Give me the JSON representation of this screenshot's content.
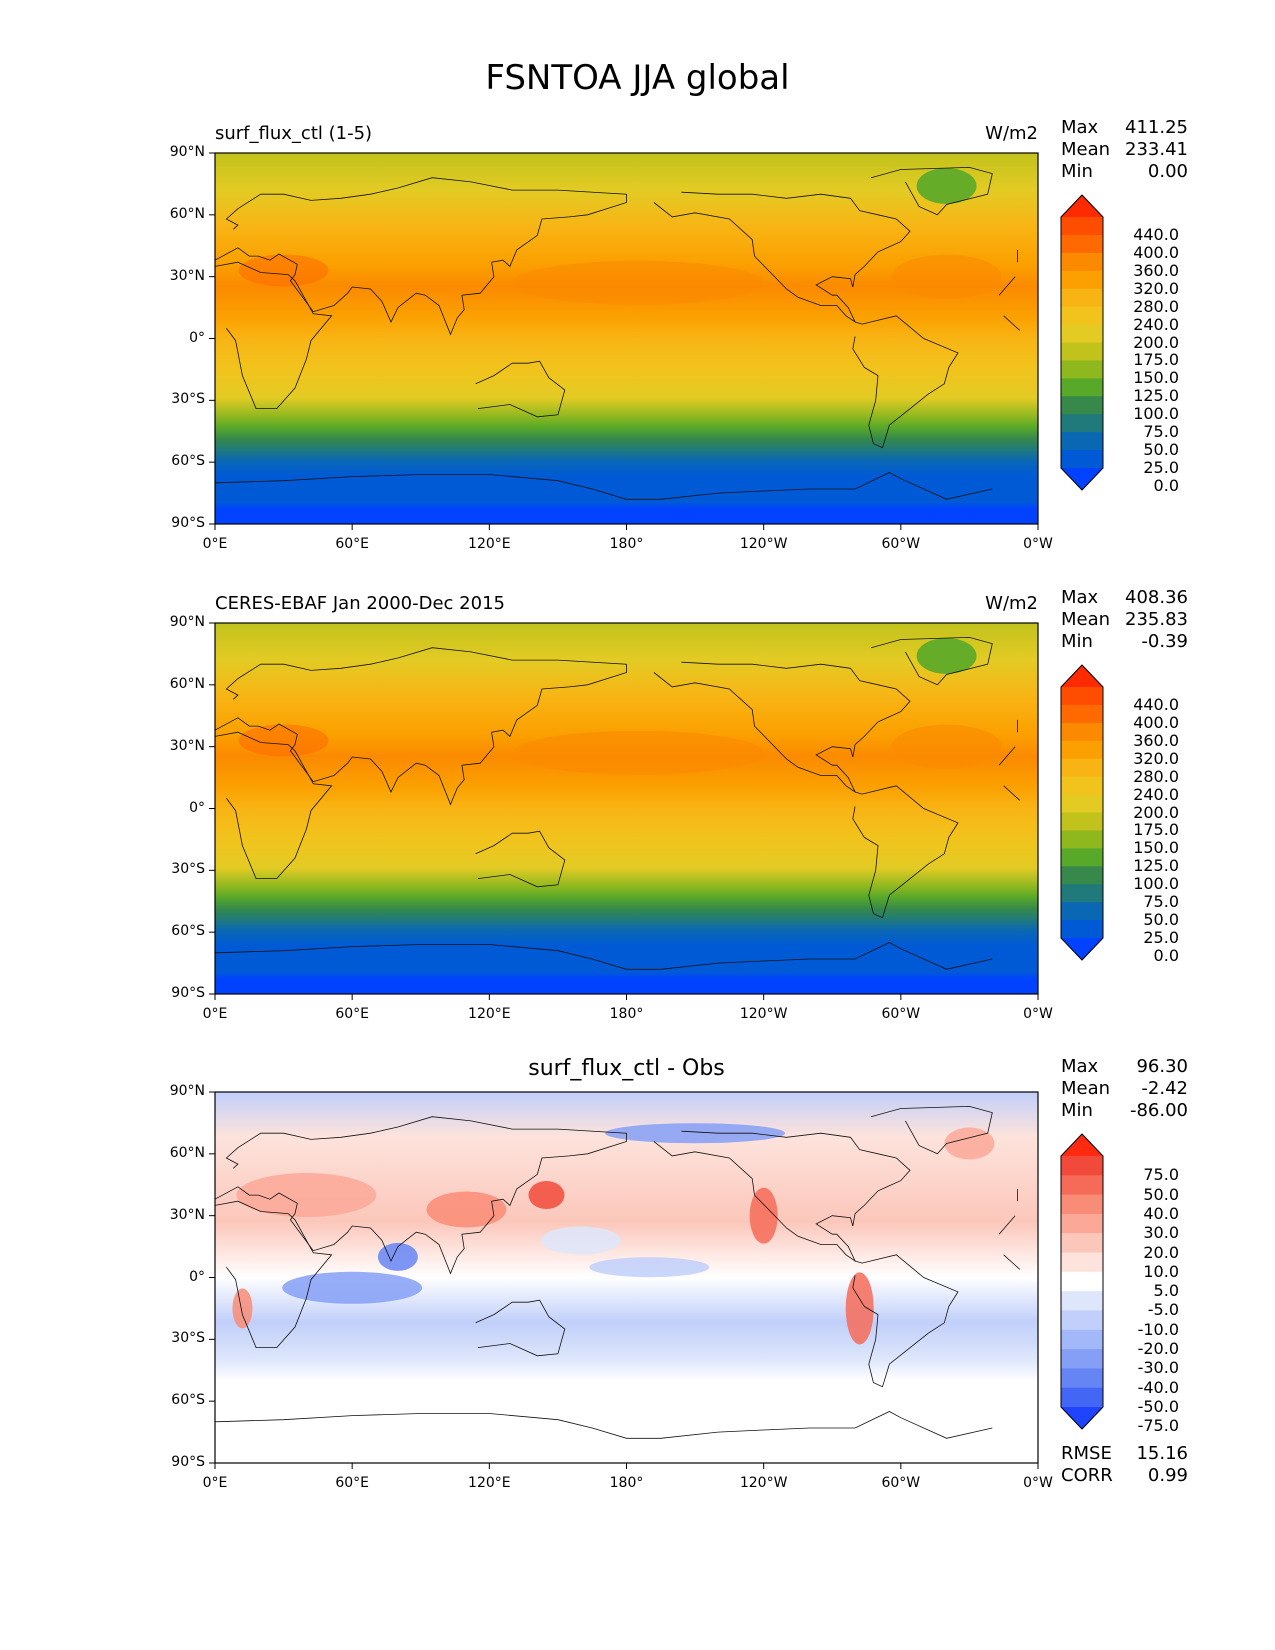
{
  "title": "FSNTOA JJA global",
  "lat_ticks": [
    "90°N",
    "60°N",
    "30°N",
    "0°",
    "30°S",
    "60°S",
    "90°S"
  ],
  "lon_ticks": [
    "0°E",
    "60°E",
    "120°E",
    "180°",
    "120°W",
    "60°W",
    "0°W"
  ],
  "panels": [
    {
      "id": "test",
      "left_title": "surf_flux_ctl (1-5)",
      "center_title": "",
      "units": "W/m2",
      "stats": [
        {
          "name": "Max",
          "value": "411.25"
        },
        {
          "name": "Mean",
          "value": "233.41"
        },
        {
          "name": "Min",
          "value": "0.00"
        }
      ],
      "colorbar": {
        "labels": [
          "440.0",
          "400.0",
          "360.0",
          "320.0",
          "280.0",
          "240.0",
          "200.0",
          "175.0",
          "150.0",
          "125.0",
          "100.0",
          "75.0",
          "50.0",
          "25.0",
          "0.0"
        ],
        "colors": [
          "#ff2a00",
          "#ff4d00",
          "#ff6a00",
          "#fb8a00",
          "#fba000",
          "#f8b414",
          "#f2c31c",
          "#e3cb24",
          "#c2c21c",
          "#8fb81f",
          "#58a82a",
          "#36894a",
          "#207a7c",
          "#0a67b4",
          "#005ad6",
          "#0042ff"
        ]
      }
    },
    {
      "id": "reference",
      "left_title": "CERES-EBAF Jan 2000-Dec 2015",
      "center_title": "",
      "units": "W/m2",
      "stats": [
        {
          "name": "Max",
          "value": "408.36"
        },
        {
          "name": "Mean",
          "value": "235.83"
        },
        {
          "name": "Min",
          "value": "-0.39"
        }
      ],
      "colorbar": {
        "labels": [
          "440.0",
          "400.0",
          "360.0",
          "320.0",
          "280.0",
          "240.0",
          "200.0",
          "175.0",
          "150.0",
          "125.0",
          "100.0",
          "75.0",
          "50.0",
          "25.0",
          "0.0"
        ],
        "colors": [
          "#ff2a00",
          "#ff4d00",
          "#ff6a00",
          "#fb8a00",
          "#fba000",
          "#f8b414",
          "#f2c31c",
          "#e3cb24",
          "#c2c21c",
          "#8fb81f",
          "#58a82a",
          "#36894a",
          "#207a7c",
          "#0a67b4",
          "#005ad6",
          "#0042ff"
        ]
      }
    },
    {
      "id": "difference",
      "left_title": "",
      "center_title": "surf_flux_ctl - Obs",
      "units": "",
      "stats": [
        {
          "name": "Max",
          "value": "96.30"
        },
        {
          "name": "Mean",
          "value": "-2.42"
        },
        {
          "name": "Min",
          "value": "-86.00"
        }
      ],
      "extra_stats": [
        {
          "name": "RMSE",
          "value": "15.16"
        },
        {
          "name": "CORR",
          "value": "0.99"
        }
      ],
      "colorbar": {
        "labels": [
          "75.0",
          "50.0",
          "40.0",
          "30.0",
          "20.0",
          "10.0",
          "5.0",
          "-5.0",
          "-10.0",
          "-20.0",
          "-30.0",
          "-40.0",
          "-50.0",
          "-75.0"
        ],
        "colors": [
          "#ff2a10",
          "#f24a3a",
          "#f66b58",
          "#f98c76",
          "#fba898",
          "#fcc7bb",
          "#fde3dc",
          "#ffffff",
          "#dde6fb",
          "#c1cffa",
          "#a3b8f8",
          "#859ff6",
          "#6685f4",
          "#4466f5",
          "#1e44ff"
        ]
      }
    }
  ]
}
